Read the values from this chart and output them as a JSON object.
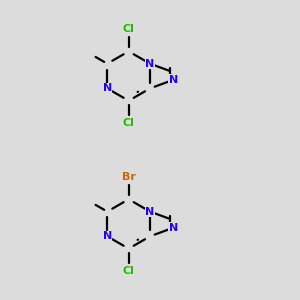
{
  "bg": "#dcdcdc",
  "bond_color": "#000000",
  "N_color": "#2200ff",
  "Cl_color": "#22bb00",
  "Br_color": "#cc6600",
  "lw": 1.6,
  "fs": 8.0,
  "figsize": [
    3.0,
    3.0
  ],
  "dpi": 100,
  "mol1_top_hal": "Cl",
  "mol1_top_hal_color": "#22bb00",
  "mol1_bot_hal": "Cl",
  "mol1_bot_hal_color": "#22bb00",
  "mol2_top_hal": "Br",
  "mol2_top_hal_color": "#cc6600",
  "mol2_bot_hal": "Cl",
  "mol2_bot_hal_color": "#22bb00"
}
